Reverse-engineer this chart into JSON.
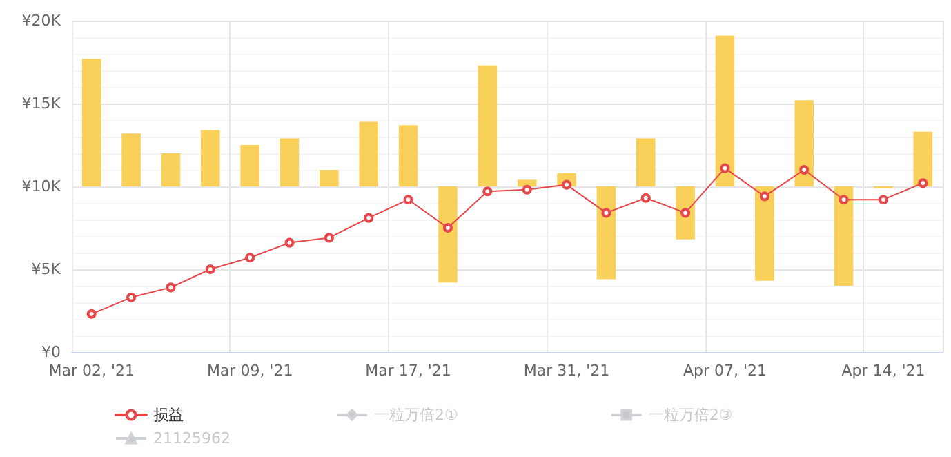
{
  "chart_data": {
    "type": "bar",
    "categories": [
      "Mar 02, '21",
      null,
      null,
      null,
      "Mar 09, '21",
      null,
      null,
      null,
      "Mar 17, '21",
      null,
      null,
      null,
      "Mar 31, '21",
      null,
      null,
      null,
      "Apr 07, '21",
      null,
      null,
      null,
      "Apr 14, '21",
      null
    ],
    "series": [
      {
        "color": "#f9d05a",
        "base": [
          10000,
          10000,
          10000,
          10000,
          10000,
          10000,
          10000,
          10000,
          10000,
          10000,
          10000,
          10000,
          10000,
          10000,
          10000,
          10000,
          10000,
          10000,
          10000,
          10000,
          10000,
          10000
        ],
        "values": [
          7700,
          3200,
          2000,
          3400,
          2500,
          2900,
          1000,
          3900,
          3700,
          -5800,
          7300,
          400,
          800,
          -5600,
          2900,
          -3200,
          9100,
          -5700,
          5200,
          -6000,
          -100,
          3300
        ]
      },
      {
        "type": "line",
        "name": "损益",
        "color": "#e5474b",
        "marker": "circle",
        "values": [
          2300,
          3300,
          3900,
          5000,
          5700,
          6600,
          6900,
          8100,
          9200,
          7500,
          9700,
          9800,
          10100,
          8400,
          9300,
          8400,
          11100,
          9400,
          11000,
          9200,
          9200,
          10200
        ]
      },
      {
        "type": "line",
        "name": "一粒万倍2①",
        "color": "#cccccc",
        "marker": "diamond",
        "values": [
          null,
          null,
          null,
          null,
          null,
          null,
          null,
          null,
          null,
          null,
          null,
          null,
          null,
          null,
          null,
          null,
          null,
          null,
          null,
          null,
          null,
          null
        ]
      },
      {
        "type": "line",
        "name": "一粒万倍2③",
        "color": "#cccccc",
        "marker": "square",
        "values": [
          null,
          null,
          null,
          null,
          null,
          null,
          null,
          null,
          null,
          null,
          null,
          null,
          null,
          null,
          null,
          null,
          null,
          null,
          null,
          null,
          null,
          null
        ]
      },
      {
        "type": "line",
        "name": "21125962",
        "color": "#cccccc",
        "marker": "triangle",
        "values": [
          null,
          null,
          null,
          null,
          null,
          null,
          null,
          null,
          null,
          null,
          null,
          null,
          null,
          null,
          null,
          null,
          null,
          null,
          null,
          null,
          null,
          null
        ]
      }
    ],
    "ylim": [
      0,
      20000
    ],
    "yticks": [
      {
        "value": 0,
        "label": "¥0"
      },
      {
        "value": 5000,
        "label": "¥5K"
      },
      {
        "value": 10000,
        "label": "¥10K"
      },
      {
        "value": 15000,
        "label": "¥15K"
      },
      {
        "value": 20000,
        "label": "¥20K"
      }
    ],
    "grid": true,
    "legend": "bottom left"
  }
}
